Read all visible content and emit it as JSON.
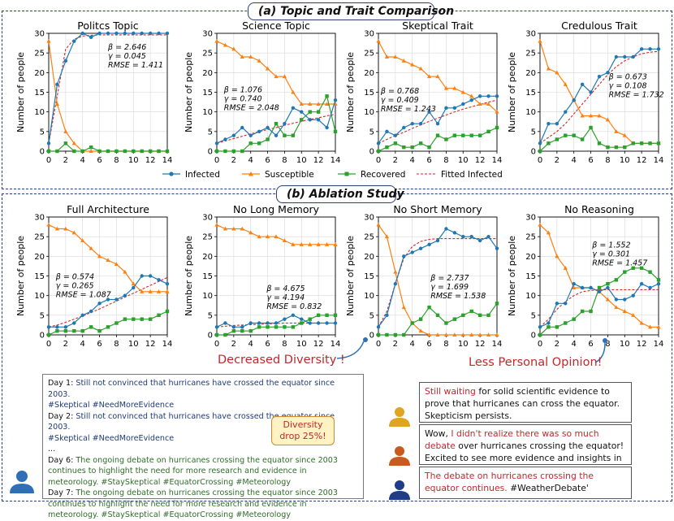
{
  "section_a": {
    "title": "(a) Topic and Trait Comparison"
  },
  "section_b": {
    "title": "(b) Ablation Study"
  },
  "legend": {
    "items": [
      "Infected",
      "Susceptible",
      "Recovered",
      "Fitted Infected"
    ]
  },
  "colors": {
    "infected": "#1f77b4",
    "susceptible": "#ff7f0e",
    "recovered": "#2ca02c",
    "fitted": "#d62728"
  },
  "chart_data": [
    {
      "type": "line",
      "title": "Politcs Topic",
      "ylabel": "Number of people",
      "xlim": [
        0,
        14
      ],
      "ylim": [
        0,
        30
      ],
      "x_ticks": [
        "0",
        "2",
        "4",
        "6",
        "8",
        "10",
        "12",
        "14"
      ],
      "y_ticks": [
        "0",
        "5",
        "10",
        "15",
        "20",
        "25",
        "30"
      ],
      "x": [
        0,
        1,
        2,
        3,
        4,
        5,
        6,
        7,
        8,
        9,
        10,
        11,
        12,
        13,
        14
      ],
      "series": [
        {
          "name": "Infected",
          "values": [
            2,
            17,
            23,
            28,
            30,
            29,
            30,
            30,
            30,
            30,
            30,
            30,
            30,
            30,
            30
          ]
        },
        {
          "name": "Susceptible",
          "values": [
            28,
            12,
            5,
            2,
            0,
            0,
            0,
            0,
            0,
            0,
            0,
            0,
            0,
            0,
            0
          ]
        },
        {
          "name": "Recovered",
          "values": [
            0,
            0,
            2,
            0,
            0,
            1,
            0,
            0,
            0,
            0,
            0,
            0,
            0,
            0,
            0
          ]
        },
        {
          "name": "Fitted Infected",
          "values": [
            2,
            14,
            26,
            28.5,
            29.3,
            29.5,
            29.6,
            29.6,
            29.6,
            29.6,
            29.6,
            29.6,
            29.6,
            29.6,
            29.6
          ]
        }
      ],
      "annotation": [
        "β = 2.646",
        "γ = 0.045",
        "RMSE = 1.411"
      ]
    },
    {
      "type": "line",
      "title": "Science Topic",
      "ylabel": "Number of people",
      "xlim": [
        0,
        14
      ],
      "ylim": [
        0,
        30
      ],
      "x_ticks": [
        "0",
        "2",
        "4",
        "6",
        "8",
        "10",
        "12",
        "14"
      ],
      "y_ticks": [
        "0",
        "5",
        "10",
        "15",
        "20",
        "25",
        "30"
      ],
      "x": [
        0,
        1,
        2,
        3,
        4,
        5,
        6,
        7,
        8,
        9,
        10,
        11,
        12,
        13,
        14
      ],
      "series": [
        {
          "name": "Infected",
          "values": [
            2,
            3,
            4,
            6,
            4,
            5,
            6,
            4,
            7,
            11,
            10,
            8,
            8,
            6,
            13
          ]
        },
        {
          "name": "Susceptible",
          "values": [
            28,
            27,
            26,
            24,
            24,
            23,
            21,
            19,
            19,
            15,
            12,
            12,
            12,
            12,
            12
          ]
        },
        {
          "name": "Recovered",
          "values": [
            0,
            0,
            0,
            0,
            2,
            2,
            3,
            7,
            4,
            4,
            8,
            10,
            10,
            14,
            5
          ]
        },
        {
          "name": "Fitted Infected",
          "values": [
            2,
            2.6,
            3.2,
            3.8,
            4.4,
            5,
            5.5,
            6,
            6.6,
            7.1,
            7.6,
            8.1,
            8.5,
            9,
            9.4
          ]
        }
      ],
      "annotation": [
        "β = 1.076",
        "γ = 0.740",
        "RMSE = 2.048"
      ]
    },
    {
      "type": "line",
      "title": "Skeptical Trait",
      "ylabel": "Number of people",
      "xlim": [
        0,
        14
      ],
      "ylim": [
        0,
        30
      ],
      "x_ticks": [
        "0",
        "2",
        "4",
        "6",
        "8",
        "10",
        "12",
        "14"
      ],
      "y_ticks": [
        "0",
        "5",
        "10",
        "15",
        "20",
        "25",
        "30"
      ],
      "x": [
        0,
        1,
        2,
        3,
        4,
        5,
        6,
        7,
        8,
        9,
        10,
        11,
        12,
        13,
        14
      ],
      "series": [
        {
          "name": "Infected",
          "values": [
            2,
            5,
            4,
            6,
            7,
            7,
            10,
            7,
            11,
            11,
            12,
            13,
            14,
            14,
            14
          ]
        },
        {
          "name": "Susceptible",
          "values": [
            28,
            24,
            24,
            23,
            22,
            21,
            19,
            19,
            16,
            16,
            15,
            14,
            12,
            12,
            10
          ]
        },
        {
          "name": "Recovered",
          "values": [
            0,
            1,
            2,
            1,
            1,
            2,
            1,
            4,
            3,
            4,
            4,
            4,
            4,
            5,
            6
          ]
        },
        {
          "name": "Fitted Infected",
          "values": [
            2,
            3,
            4,
            4.8,
            5.8,
            6.7,
            7.6,
            8.4,
            9.2,
            10,
            10.7,
            11.3,
            11.9,
            12.5,
            13
          ]
        }
      ],
      "annotation": [
        "β = 0.768",
        "γ = 0.409",
        "RMSE = 1.243"
      ]
    },
    {
      "type": "line",
      "title": "Credulous Trait",
      "ylabel": "Number of people",
      "xlim": [
        0,
        14
      ],
      "ylim": [
        0,
        30
      ],
      "x_ticks": [
        "0",
        "2",
        "4",
        "6",
        "8",
        "10",
        "12",
        "14"
      ],
      "y_ticks": [
        "0",
        "5",
        "10",
        "15",
        "20",
        "25",
        "30"
      ],
      "x": [
        0,
        1,
        2,
        3,
        4,
        5,
        6,
        7,
        8,
        9,
        10,
        11,
        12,
        13,
        14
      ],
      "series": [
        {
          "name": "Infected",
          "values": [
            2,
            7,
            7,
            10,
            13,
            17,
            15,
            19,
            20,
            24,
            24,
            24,
            26,
            26,
            26
          ]
        },
        {
          "name": "Susceptible",
          "values": [
            28,
            21,
            20,
            17,
            13,
            9,
            9,
            9,
            8,
            5,
            4,
            2,
            2,
            2,
            2
          ]
        },
        {
          "name": "Recovered",
          "values": [
            0,
            2,
            3,
            4,
            4,
            3,
            6,
            2,
            1,
            1,
            1,
            2,
            2,
            2,
            2
          ]
        },
        {
          "name": "Fitted Infected",
          "values": [
            2,
            3.5,
            5,
            7,
            9.5,
            12,
            14.5,
            17,
            19.5,
            21.5,
            23,
            24,
            24.8,
            25.2,
            25.4
          ]
        }
      ],
      "annotation": [
        "β = 0.673",
        "γ = 0.108",
        "RMSE = 1.732"
      ]
    },
    {
      "type": "line",
      "title": "Full Architecture",
      "ylabel": "Number of people",
      "xlim": [
        0,
        14
      ],
      "ylim": [
        0,
        30
      ],
      "x_ticks": [
        "0",
        "2",
        "4",
        "6",
        "8",
        "10",
        "12",
        "14"
      ],
      "y_ticks": [
        "0",
        "5",
        "10",
        "15",
        "20",
        "25",
        "30"
      ],
      "x": [
        0,
        1,
        2,
        3,
        4,
        5,
        6,
        7,
        8,
        9,
        10,
        11,
        12,
        13,
        14
      ],
      "series": [
        {
          "name": "Infected",
          "values": [
            2,
            2,
            2,
            3,
            5,
            6,
            8,
            9,
            9,
            10,
            12,
            15,
            15,
            14,
            13
          ]
        },
        {
          "name": "Susceptible",
          "values": [
            28,
            27,
            27,
            26,
            24,
            22,
            20,
            19,
            18,
            16,
            13,
            11,
            11,
            11,
            11
          ]
        },
        {
          "name": "Recovered",
          "values": [
            0,
            1,
            1,
            1,
            1,
            2,
            1,
            2,
            3,
            4,
            4,
            4,
            4,
            5,
            6
          ]
        },
        {
          "name": "Fitted Infected",
          "values": [
            2,
            2.5,
            3.2,
            4,
            4.8,
            5.7,
            6.6,
            7.6,
            8.6,
            9.6,
            10.6,
            11.6,
            12.6,
            13.6,
            14.6
          ]
        }
      ],
      "annotation": [
        "β = 0.574",
        "γ = 0.265",
        "RMSE = 1.087"
      ]
    },
    {
      "type": "line",
      "title": "No Long Memory",
      "ylabel": "Number of people",
      "xlim": [
        0,
        14
      ],
      "ylim": [
        0,
        30
      ],
      "x_ticks": [
        "0",
        "2",
        "4",
        "6",
        "8",
        "10",
        "12",
        "14"
      ],
      "y_ticks": [
        "0",
        "5",
        "10",
        "15",
        "20",
        "25",
        "30"
      ],
      "x": [
        0,
        1,
        2,
        3,
        4,
        5,
        6,
        7,
        8,
        9,
        10,
        11,
        12,
        13,
        14
      ],
      "series": [
        {
          "name": "Infected",
          "values": [
            2,
            3,
            2,
            2,
            3,
            3,
            3,
            3,
            4,
            5,
            4,
            3,
            3,
            3,
            3
          ]
        },
        {
          "name": "Susceptible",
          "values": [
            28,
            27,
            27,
            27,
            26,
            25,
            25,
            25,
            24,
            23,
            23,
            23,
            23,
            23,
            23
          ]
        },
        {
          "name": "Recovered",
          "values": [
            0,
            0,
            1,
            1,
            1,
            2,
            2,
            2,
            2,
            2,
            3,
            4,
            5,
            5,
            5
          ]
        },
        {
          "name": "Fitted Infected",
          "values": [
            2,
            2.2,
            2.4,
            2.5,
            2.6,
            2.7,
            2.8,
            2.9,
            3,
            3,
            3,
            3,
            3,
            3,
            3
          ]
        }
      ],
      "annotation": [
        "β = 4.675",
        "γ = 4.194",
        "RMSE = 0.832"
      ]
    },
    {
      "type": "line",
      "title": "No Short Memory",
      "ylabel": "Number of people",
      "xlim": [
        0,
        14
      ],
      "ylim": [
        0,
        30
      ],
      "x_ticks": [
        "0",
        "2",
        "4",
        "6",
        "8",
        "10",
        "12",
        "14"
      ],
      "y_ticks": [
        "0",
        "5",
        "10",
        "15",
        "20",
        "25",
        "30"
      ],
      "x": [
        0,
        1,
        2,
        3,
        4,
        5,
        6,
        7,
        8,
        9,
        10,
        11,
        12,
        13,
        14
      ],
      "series": [
        {
          "name": "Infected",
          "values": [
            2,
            5,
            13,
            20,
            21,
            22,
            23,
            24,
            27,
            26,
            25,
            25,
            24,
            25,
            22
          ]
        },
        {
          "name": "Susceptible",
          "values": [
            28,
            25,
            16,
            7,
            3,
            1,
            0,
            0,
            0,
            0,
            0,
            0,
            0,
            0,
            0
          ]
        },
        {
          "name": "Recovered",
          "values": [
            0,
            0,
            0,
            0,
            3,
            4,
            7,
            5,
            3,
            4,
            5,
            6,
            5,
            5,
            8
          ]
        },
        {
          "name": "Fitted Infected",
          "values": [
            2,
            6,
            13,
            19.5,
            22.5,
            23.8,
            24.3,
            24.5,
            24.5,
            24.5,
            24.5,
            24.5,
            24.5,
            24.5,
            24.5
          ]
        }
      ],
      "annotation": [
        "β = 2.737",
        "γ = 1.699",
        "RMSE = 1.538"
      ]
    },
    {
      "type": "line",
      "title": "No Reasoning",
      "ylabel": "Number of people",
      "xlim": [
        0,
        14
      ],
      "ylim": [
        0,
        30
      ],
      "x_ticks": [
        "0",
        "2",
        "4",
        "6",
        "8",
        "10",
        "12",
        "14"
      ],
      "y_ticks": [
        "0",
        "5",
        "10",
        "15",
        "20",
        "25",
        "30"
      ],
      "x": [
        0,
        1,
        2,
        3,
        4,
        5,
        6,
        7,
        8,
        9,
        10,
        11,
        12,
        13,
        14
      ],
      "series": [
        {
          "name": "Infected",
          "values": [
            2,
            3,
            8,
            8,
            13,
            12,
            12,
            11,
            12,
            9,
            9,
            10,
            13,
            12,
            13
          ]
        },
        {
          "name": "Susceptible",
          "values": [
            28,
            26,
            20,
            17,
            12,
            12,
            12,
            11,
            9,
            7,
            6,
            5,
            3,
            2,
            2
          ]
        },
        {
          "name": "Recovered",
          "values": [
            0,
            2,
            2,
            3,
            4,
            6,
            6,
            12,
            13,
            14,
            16,
            17,
            17,
            16,
            14
          ]
        },
        {
          "name": "Fitted Infected",
          "values": [
            2,
            4,
            6.5,
            8.5,
            10,
            11,
            11.3,
            11.5,
            11.5,
            11.5,
            11.5,
            11.5,
            11.5,
            11.5,
            11.5
          ]
        }
      ],
      "annotation": [
        "β = 1.552",
        "γ = 0.301",
        "RMSE = 1.457"
      ]
    }
  ],
  "callouts": {
    "diversity": "Decreased Diversity !",
    "opinion": "Less Personal Opinion!"
  },
  "badge": {
    "line1": "Diversity",
    "line2": "drop 25%!"
  },
  "tweets": {
    "d1_prefix": "Day 1: ",
    "d1_text": "Still not convinced that hurricanes have crossed the equator since 2003.",
    "d1_tags": "#Skeptical #NeedMoreEvidence",
    "d2_prefix": "Day 2: ",
    "d2_text": "Still not convinced that hurricanes have crossed the equator since 2003.",
    "d2_tags": "#Skeptical #NeedMoreEvidence",
    "ellipsis": "...",
    "d6_prefix": "Day 6: ",
    "d6_text": "The ongoing debate on hurricanes crossing the equator since 2003 continues to highlight the need for more research and evidence in meteorology. #StaySkeptical #EquatorCrossing #Meteorology",
    "d7_prefix": "Day 7: ",
    "d7_text": "The ongoing debate on hurricanes crossing the equator since 2003 continues to highlight the need for more research and evidence in meteorology. #StaySkeptical #EquatorCrossing #Meteorology"
  },
  "posts": {
    "p1_red": "Still waiting",
    "p1_rest": " for solid scientific evidence to prove that hurricanes can cross the equator. Skepticism persists.",
    "p2_start": "Wow, ",
    "p2_red": "I didn't realize there was so much debate",
    "p2_rest": " over hurricanes crossing the equator! Excited to see more evidence and insights in the future!",
    "p3_red": "The debate on hurricanes crossing the equator continues.",
    "p3_rest": " #WeatherDebate'"
  },
  "avatar_colors": {
    "left": "#2f6fb5",
    "p1": "#e0a520",
    "p2": "#c85a1e",
    "p3": "#1f3b8a"
  }
}
